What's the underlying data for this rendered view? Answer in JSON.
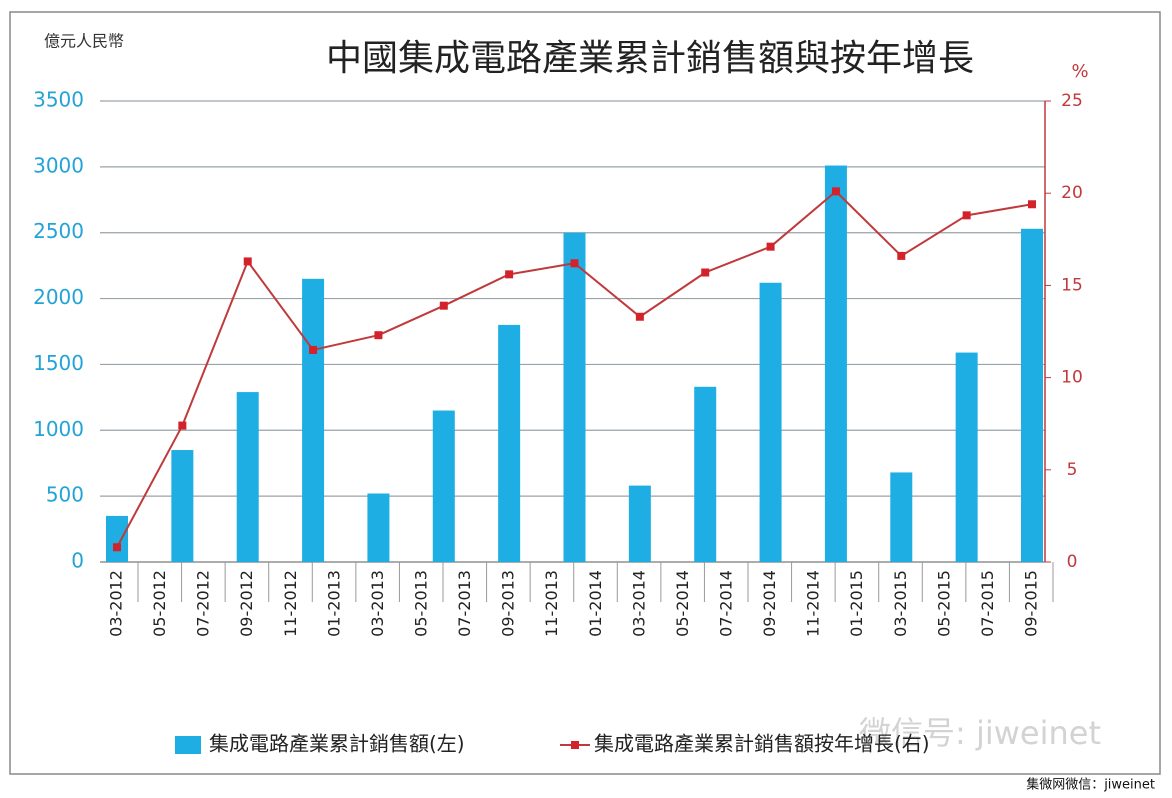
{
  "chart_data": {
    "type": "bar-line",
    "title": "中國集成電路產業累計銷售額與按年增長",
    "y_label": "億元人民幣",
    "y2_label": "%",
    "categories": [
      "03-2012",
      null,
      "05-2012",
      null,
      "07-2012",
      null,
      "09-2012",
      null,
      "11-2012",
      null,
      "01-2013",
      null,
      "03-2013",
      null,
      "05-2013",
      null,
      "07-2013",
      null,
      "09-2013",
      null,
      "11-2013",
      null,
      "01-2014",
      null,
      "03-2014",
      null,
      "05-2014",
      null,
      "07-2014",
      null,
      "09-2014",
      null,
      "11-2014",
      null,
      "01-2015",
      null,
      "03-2015",
      null,
      "05-2015",
      null,
      "07-2015",
      null,
      "09-2015"
    ],
    "series": [
      {
        "name": "集成電路產業累計銷售額(左)",
        "type": "bar",
        "axis": "y",
        "color": "#1eaee4",
        "values": [
          350,
          null,
          null,
          850,
          null,
          null,
          1290,
          null,
          null,
          2150,
          null,
          null,
          520,
          null,
          null,
          1150,
          null,
          null,
          1800,
          null,
          null,
          2500,
          null,
          null,
          580,
          null,
          null,
          1330,
          null,
          null,
          2120,
          null,
          null,
          3010,
          null,
          null,
          680,
          null,
          null,
          1590,
          null,
          null,
          2530
        ]
      },
      {
        "name": "集成電路產業累計銷售額按年增長(右)",
        "type": "line",
        "axis": "y2",
        "color": "#c0393b",
        "marker_color": "#d3222a",
        "values": [
          0.8,
          null,
          null,
          7.4,
          null,
          null,
          16.3,
          null,
          null,
          11.5,
          null,
          null,
          12.3,
          null,
          null,
          13.9,
          null,
          null,
          15.6,
          null,
          null,
          16.2,
          null,
          null,
          13.3,
          null,
          null,
          15.7,
          null,
          null,
          17.1,
          null,
          null,
          20.1,
          null,
          null,
          16.6,
          null,
          null,
          18.8,
          null,
          null,
          19.4
        ]
      }
    ],
    "ylim": [
      0,
      3500
    ],
    "yticks": [
      0,
      500,
      1000,
      1500,
      2000,
      2500,
      3000,
      3500
    ],
    "y2lim": [
      0,
      25
    ],
    "y2ticks": [
      0,
      5,
      10,
      15,
      20,
      25
    ],
    "grid": true,
    "legend": "bottom",
    "watermark": "微信号: jiweinet",
    "source": "集微网微信：jiweinet"
  }
}
